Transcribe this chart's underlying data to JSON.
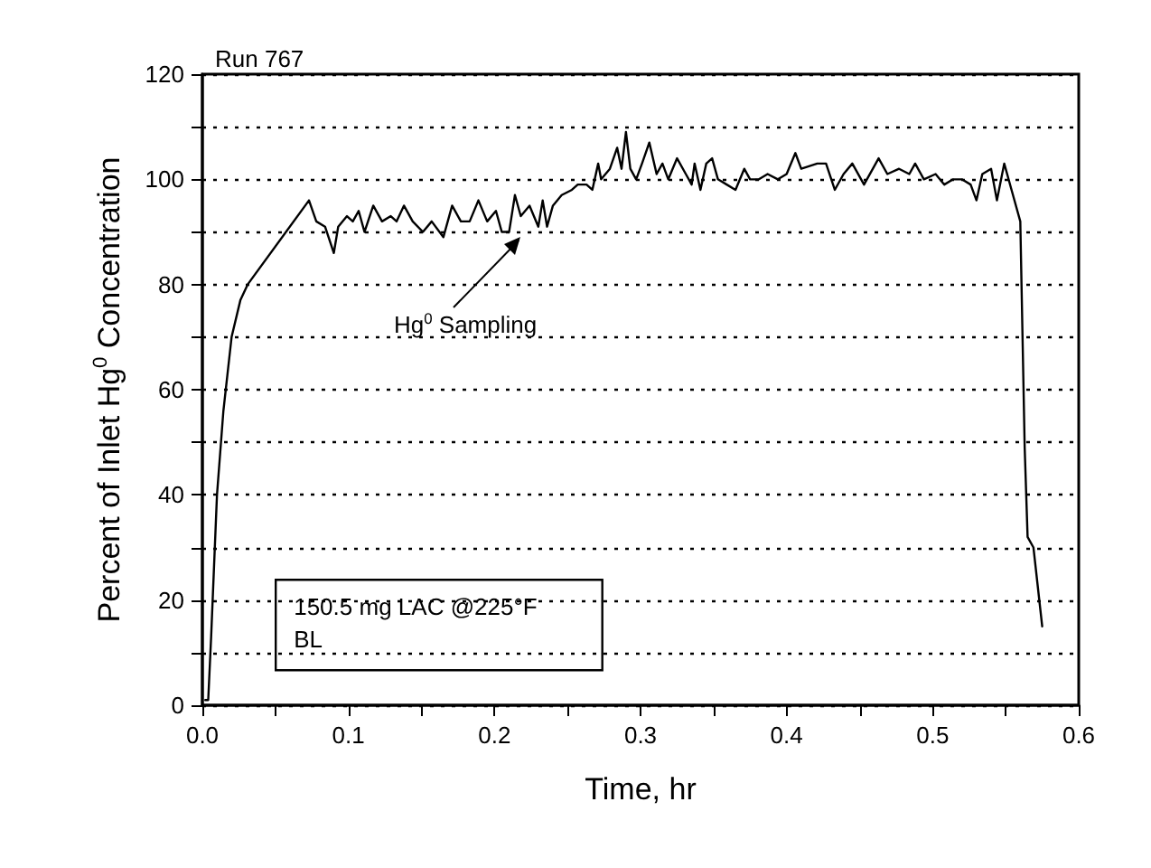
{
  "chart_data": {
    "type": "line",
    "title": "Run 767",
    "xlabel": "Time, hr",
    "ylabel": "Percent of Inlet Hg$^{0}$ Concentration",
    "annotations": [
      "Hg$^{0}$ Sampling",
      "150.5 mg LAC @225°F\nBL"
    ],
    "series": [
      {
        "color": "#000000",
        "x": [
          0.002,
          0.004,
          0.006,
          0.01,
          0.0144,
          0.02,
          0.026,
          0.031,
          0.073,
          0.078,
          0.084,
          0.09,
          0.093,
          0.099,
          0.103,
          0.107,
          0.111,
          0.117,
          0.123,
          0.129,
          0.133,
          0.138,
          0.144,
          0.151,
          0.157,
          0.165,
          0.171,
          0.177,
          0.183,
          0.189,
          0.195,
          0.201,
          0.205,
          0.21,
          0.214,
          0.218,
          0.224,
          0.23,
          0.233,
          0.236,
          0.24,
          0.246,
          0.253,
          0.257,
          0.263,
          0.267,
          0.271,
          0.273,
          0.279,
          0.284,
          0.287,
          0.29,
          0.293,
          0.297,
          0.301,
          0.306,
          0.311,
          0.315,
          0.319,
          0.325,
          0.331,
          0.335,
          0.337,
          0.341,
          0.345,
          0.349,
          0.353,
          0.359,
          0.365,
          0.371,
          0.375,
          0.381,
          0.387,
          0.394,
          0.4,
          0.406,
          0.41,
          0.421,
          0.427,
          0.433,
          0.439,
          0.445,
          0.453,
          0.463,
          0.469,
          0.477,
          0.484,
          0.488,
          0.494,
          0.502,
          0.508,
          0.514,
          0.52,
          0.526,
          0.53,
          0.534,
          0.54,
          0.544,
          0.549,
          0.554,
          0.56,
          0.563,
          0.565,
          0.569,
          0.575
        ],
        "values": [
          1,
          1,
          13,
          40,
          56,
          70,
          77,
          80,
          96,
          92,
          91,
          86,
          91,
          93,
          92,
          94,
          90,
          95,
          92,
          93,
          92,
          95,
          92,
          90,
          92,
          89,
          95,
          92,
          92,
          96,
          92,
          94,
          90,
          90,
          97,
          93,
          95,
          91,
          96,
          91,
          95,
          97,
          98,
          99,
          99,
          98,
          103,
          100,
          102,
          106,
          102,
          109,
          102,
          100,
          103,
          107,
          101,
          103,
          100,
          104,
          101,
          99,
          103,
          98,
          103,
          104,
          100,
          99,
          98,
          102,
          100,
          100,
          101,
          100,
          101,
          105,
          102,
          103,
          103,
          98,
          101,
          103,
          99,
          104,
          101,
          102,
          101,
          103,
          100,
          101,
          99,
          100,
          100,
          99,
          96,
          101,
          102,
          96,
          103,
          98,
          92,
          49,
          32,
          30,
          15
        ]
      }
    ],
    "xlim": [
      0,
      0.6
    ],
    "xticks": [
      {
        "value": 0,
        "label": "0.0"
      },
      {
        "value": 0.05,
        "label": null
      },
      {
        "value": 0.1,
        "label": "0.1"
      },
      {
        "value": 0.15,
        "label": null
      },
      {
        "value": 0.2,
        "label": "0.2"
      },
      {
        "value": 0.25,
        "label": null
      },
      {
        "value": 0.3,
        "label": "0.3"
      },
      {
        "value": 0.35,
        "label": null
      },
      {
        "value": 0.4,
        "label": "0.4"
      },
      {
        "value": 0.45,
        "label": null
      },
      {
        "value": 0.5,
        "label": "0.5"
      },
      {
        "value": 0.55,
        "label": null
      },
      {
        "value": 0.6,
        "label": "0.6"
      }
    ],
    "ylim": [
      0,
      120
    ],
    "yticks": [
      0,
      {
        "value": 10,
        "label": null
      },
      20,
      {
        "value": 30,
        "label": null
      },
      40,
      {
        "value": 50,
        "label": null
      },
      60,
      {
        "value": 70,
        "label": null
      },
      80,
      {
        "value": 90,
        "label": null
      },
      100,
      {
        "value": 110,
        "label": null
      },
      120
    ],
    "grid": "y",
    "marker": "none",
    "line_style": "solid"
  }
}
